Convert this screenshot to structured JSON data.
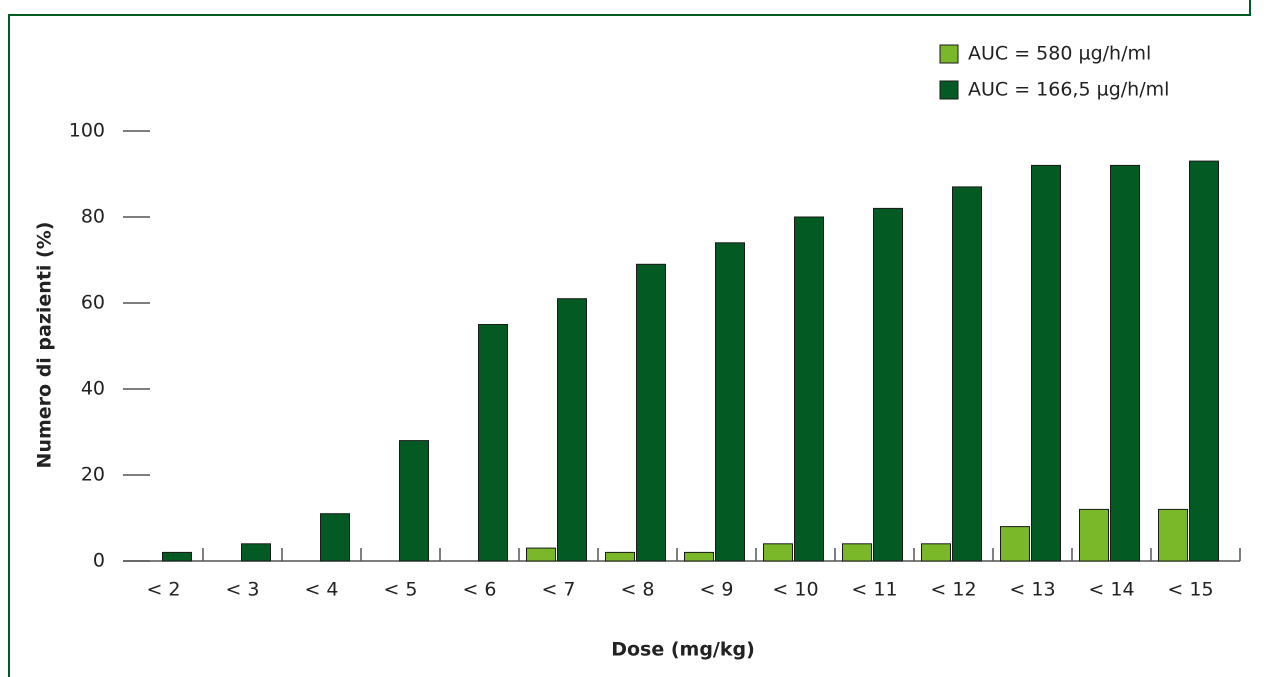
{
  "chart_data": {
    "type": "bar",
    "x_label": "Dose (mg/kg)",
    "y_label": "Numero di pazienti (%)",
    "categories": [
      "< 2",
      "< 3",
      "< 4",
      "< 5",
      "< 6",
      "< 7",
      "< 8",
      "< 9",
      "< 10",
      "< 11",
      "< 12",
      "< 13",
      "< 14",
      "< 15"
    ],
    "series": [
      {
        "name": "AUC = 580 µg/h/ml",
        "color": "#7ab82a",
        "values": [
          0,
          0,
          0,
          0,
          0,
          3,
          2,
          2,
          4,
          4,
          4,
          8,
          12,
          12
        ]
      },
      {
        "name": "AUC = 166,5 µg/h/ml",
        "color": "#035a22",
        "values": [
          2,
          4,
          11,
          28,
          55,
          61,
          69,
          74,
          80,
          82,
          87,
          92,
          92,
          93
        ]
      }
    ],
    "ylim": [
      0,
      100
    ],
    "yticks": [
      0,
      20,
      40,
      60,
      80,
      100
    ]
  }
}
